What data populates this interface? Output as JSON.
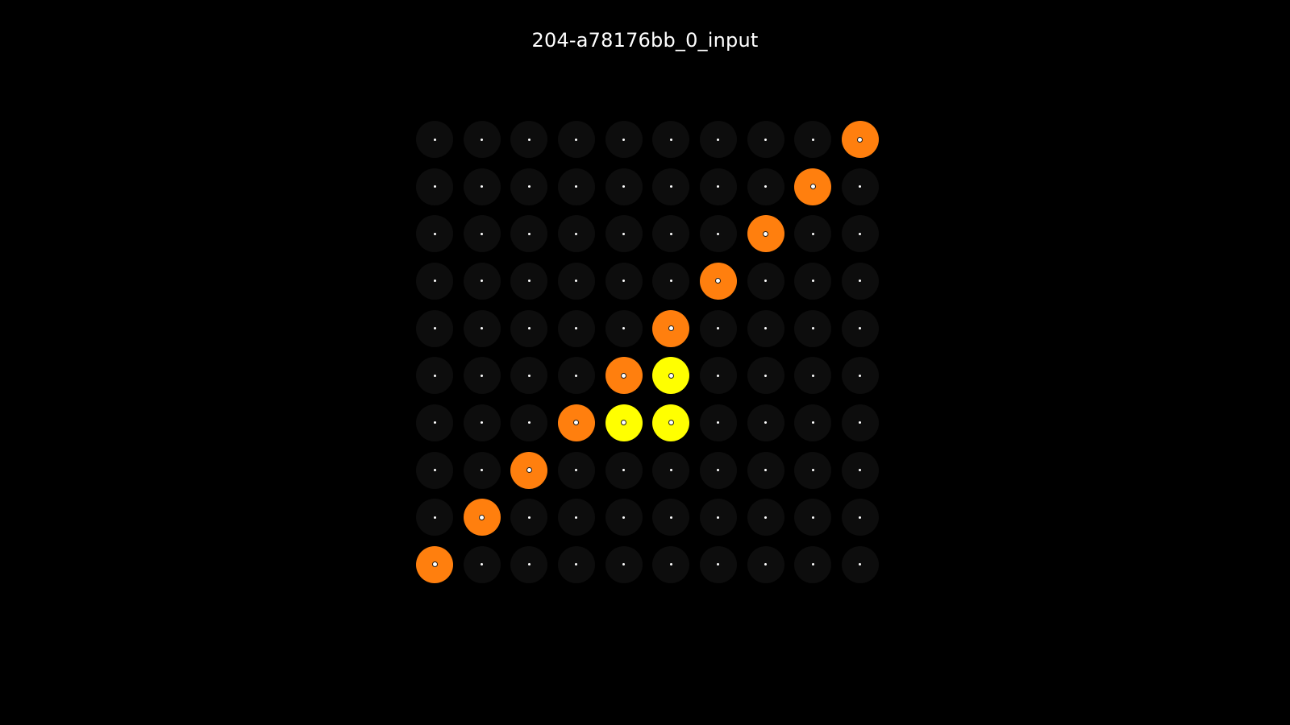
{
  "title": "204-a78176bb_0_input",
  "palette": {
    "0": "#0d0d0d",
    "4": "#ffff00",
    "7": "#ff7f0e"
  },
  "grid": [
    [
      0,
      0,
      0,
      0,
      0,
      0,
      0,
      0,
      0,
      7
    ],
    [
      0,
      0,
      0,
      0,
      0,
      0,
      0,
      0,
      7,
      0
    ],
    [
      0,
      0,
      0,
      0,
      0,
      0,
      0,
      7,
      0,
      0
    ],
    [
      0,
      0,
      0,
      0,
      0,
      0,
      7,
      0,
      0,
      0
    ],
    [
      0,
      0,
      0,
      0,
      0,
      7,
      0,
      0,
      0,
      0
    ],
    [
      0,
      0,
      0,
      0,
      7,
      4,
      0,
      0,
      0,
      0
    ],
    [
      0,
      0,
      0,
      7,
      4,
      4,
      0,
      0,
      0,
      0
    ],
    [
      0,
      0,
      7,
      0,
      0,
      0,
      0,
      0,
      0,
      0
    ],
    [
      0,
      7,
      0,
      0,
      0,
      0,
      0,
      0,
      0,
      0
    ],
    [
      7,
      0,
      0,
      0,
      0,
      0,
      0,
      0,
      0,
      0
    ]
  ]
}
